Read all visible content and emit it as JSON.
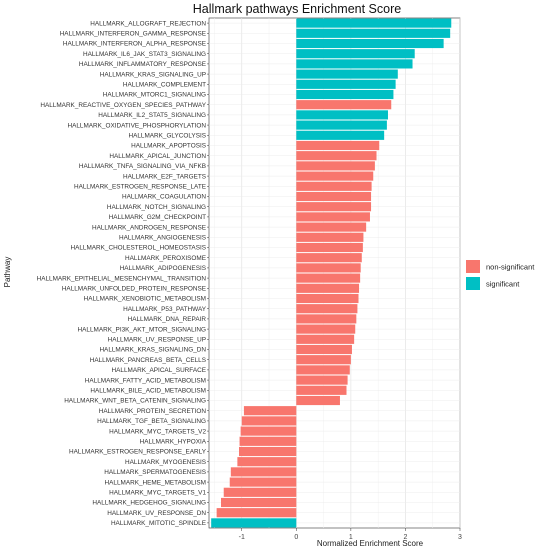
{
  "chart_data": {
    "type": "bar",
    "orientation": "horizontal",
    "title": "Hallmark pathways Enrichment Score",
    "xlabel": "Normalized Enrichment Score",
    "ylabel": "Pathway",
    "xlim": [
      -1.6,
      3.0
    ],
    "xticks": [
      -1,
      0,
      1,
      2,
      3
    ],
    "grid": true,
    "legend_position": "right",
    "legend": [
      {
        "name": "non-significant",
        "color": "#F8766D"
      },
      {
        "name": "significant",
        "color": "#00BFC4"
      }
    ],
    "categories": [
      "HALLMARK_ALLOGRAFT_REJECTION",
      "HALLMARK_INTERFERON_GAMMA_RESPONSE",
      "HALLMARK_INTERFERON_ALPHA_RESPONSE",
      "HALLMARK_IL6_JAK_STAT3_SIGNALING",
      "HALLMARK_INFLAMMATORY_RESPONSE",
      "HALLMARK_KRAS_SIGNALING_UP",
      "HALLMARK_COMPLEMENT",
      "HALLMARK_MTORC1_SIGNALING",
      "HALLMARK_REACTIVE_OXYGEN_SPECIES_PATHWAY",
      "HALLMARK_IL2_STAT5_SIGNALING",
      "HALLMARK_OXIDATIVE_PHOSPHORYLATION",
      "HALLMARK_GLYCOLYSIS",
      "HALLMARK_APOPTOSIS",
      "HALLMARK_APICAL_JUNCTION",
      "HALLMARK_TNFA_SIGNALING_VIA_NFKB",
      "HALLMARK_E2F_TARGETS",
      "HALLMARK_ESTROGEN_RESPONSE_LATE",
      "HALLMARK_COAGULATION",
      "HALLMARK_NOTCH_SIGNALING",
      "HALLMARK_G2M_CHECKPOINT",
      "HALLMARK_ANDROGEN_RESPONSE",
      "HALLMARK_ANGIOGENESIS",
      "HALLMARK_CHOLESTEROL_HOMEOSTASIS",
      "HALLMARK_PEROXISOME",
      "HALLMARK_ADIPOGENESIS",
      "HALLMARK_EPITHELIAL_MESENCHYMAL_TRANSITION",
      "HALLMARK_UNFOLDED_PROTEIN_RESPONSE",
      "HALLMARK_XENOBIOTIC_METABOLISM",
      "HALLMARK_P53_PATHWAY",
      "HALLMARK_DNA_REPAIR",
      "HALLMARK_PI3K_AKT_MTOR_SIGNALING",
      "HALLMARK_UV_RESPONSE_UP",
      "HALLMARK_KRAS_SIGNALING_DN",
      "HALLMARK_PANCREAS_BETA_CELLS",
      "HALLMARK_APICAL_SURFACE",
      "HALLMARK_FATTY_ACID_METABOLISM",
      "HALLMARK_BILE_ACID_METABOLISM",
      "HALLMARK_WNT_BETA_CATENIN_SIGNALING",
      "HALLMARK_PROTEIN_SECRETION",
      "HALLMARK_TGF_BETA_SIGNALING",
      "HALLMARK_MYC_TARGETS_V2",
      "HALLMARK_HYPOXIA",
      "HALLMARK_ESTROGEN_RESPONSE_EARLY",
      "HALLMARK_MYOGENESIS",
      "HALLMARK_SPERMATOGENESIS",
      "HALLMARK_HEME_METABOLISM",
      "HALLMARK_MYC_TARGETS_V1",
      "HALLMARK_HEDGEHOG_SIGNALING",
      "HALLMARK_UV_RESPONSE_DN",
      "HALLMARK_MITOTIC_SPINDLE"
    ],
    "values": [
      2.84,
      2.82,
      2.7,
      2.17,
      2.13,
      1.86,
      1.82,
      1.78,
      1.74,
      1.68,
      1.66,
      1.61,
      1.52,
      1.47,
      1.44,
      1.41,
      1.38,
      1.37,
      1.37,
      1.35,
      1.28,
      1.23,
      1.22,
      1.2,
      1.18,
      1.17,
      1.15,
      1.14,
      1.12,
      1.1,
      1.08,
      1.06,
      1.02,
      1.0,
      0.98,
      0.94,
      0.92,
      0.8,
      -0.96,
      -1.0,
      -1.02,
      -1.04,
      -1.05,
      -1.08,
      -1.2,
      -1.22,
      -1.33,
      -1.38,
      -1.46,
      -1.56
    ],
    "significance": [
      "significant",
      "significant",
      "significant",
      "significant",
      "significant",
      "significant",
      "significant",
      "significant",
      "non-significant",
      "significant",
      "significant",
      "significant",
      "non-significant",
      "non-significant",
      "non-significant",
      "non-significant",
      "non-significant",
      "non-significant",
      "non-significant",
      "non-significant",
      "non-significant",
      "non-significant",
      "non-significant",
      "non-significant",
      "non-significant",
      "non-significant",
      "non-significant",
      "non-significant",
      "non-significant",
      "non-significant",
      "non-significant",
      "non-significant",
      "non-significant",
      "non-significant",
      "non-significant",
      "non-significant",
      "non-significant",
      "non-significant",
      "non-significant",
      "non-significant",
      "non-significant",
      "non-significant",
      "non-significant",
      "non-significant",
      "non-significant",
      "non-significant",
      "non-significant",
      "non-significant",
      "non-significant",
      "significant"
    ]
  }
}
